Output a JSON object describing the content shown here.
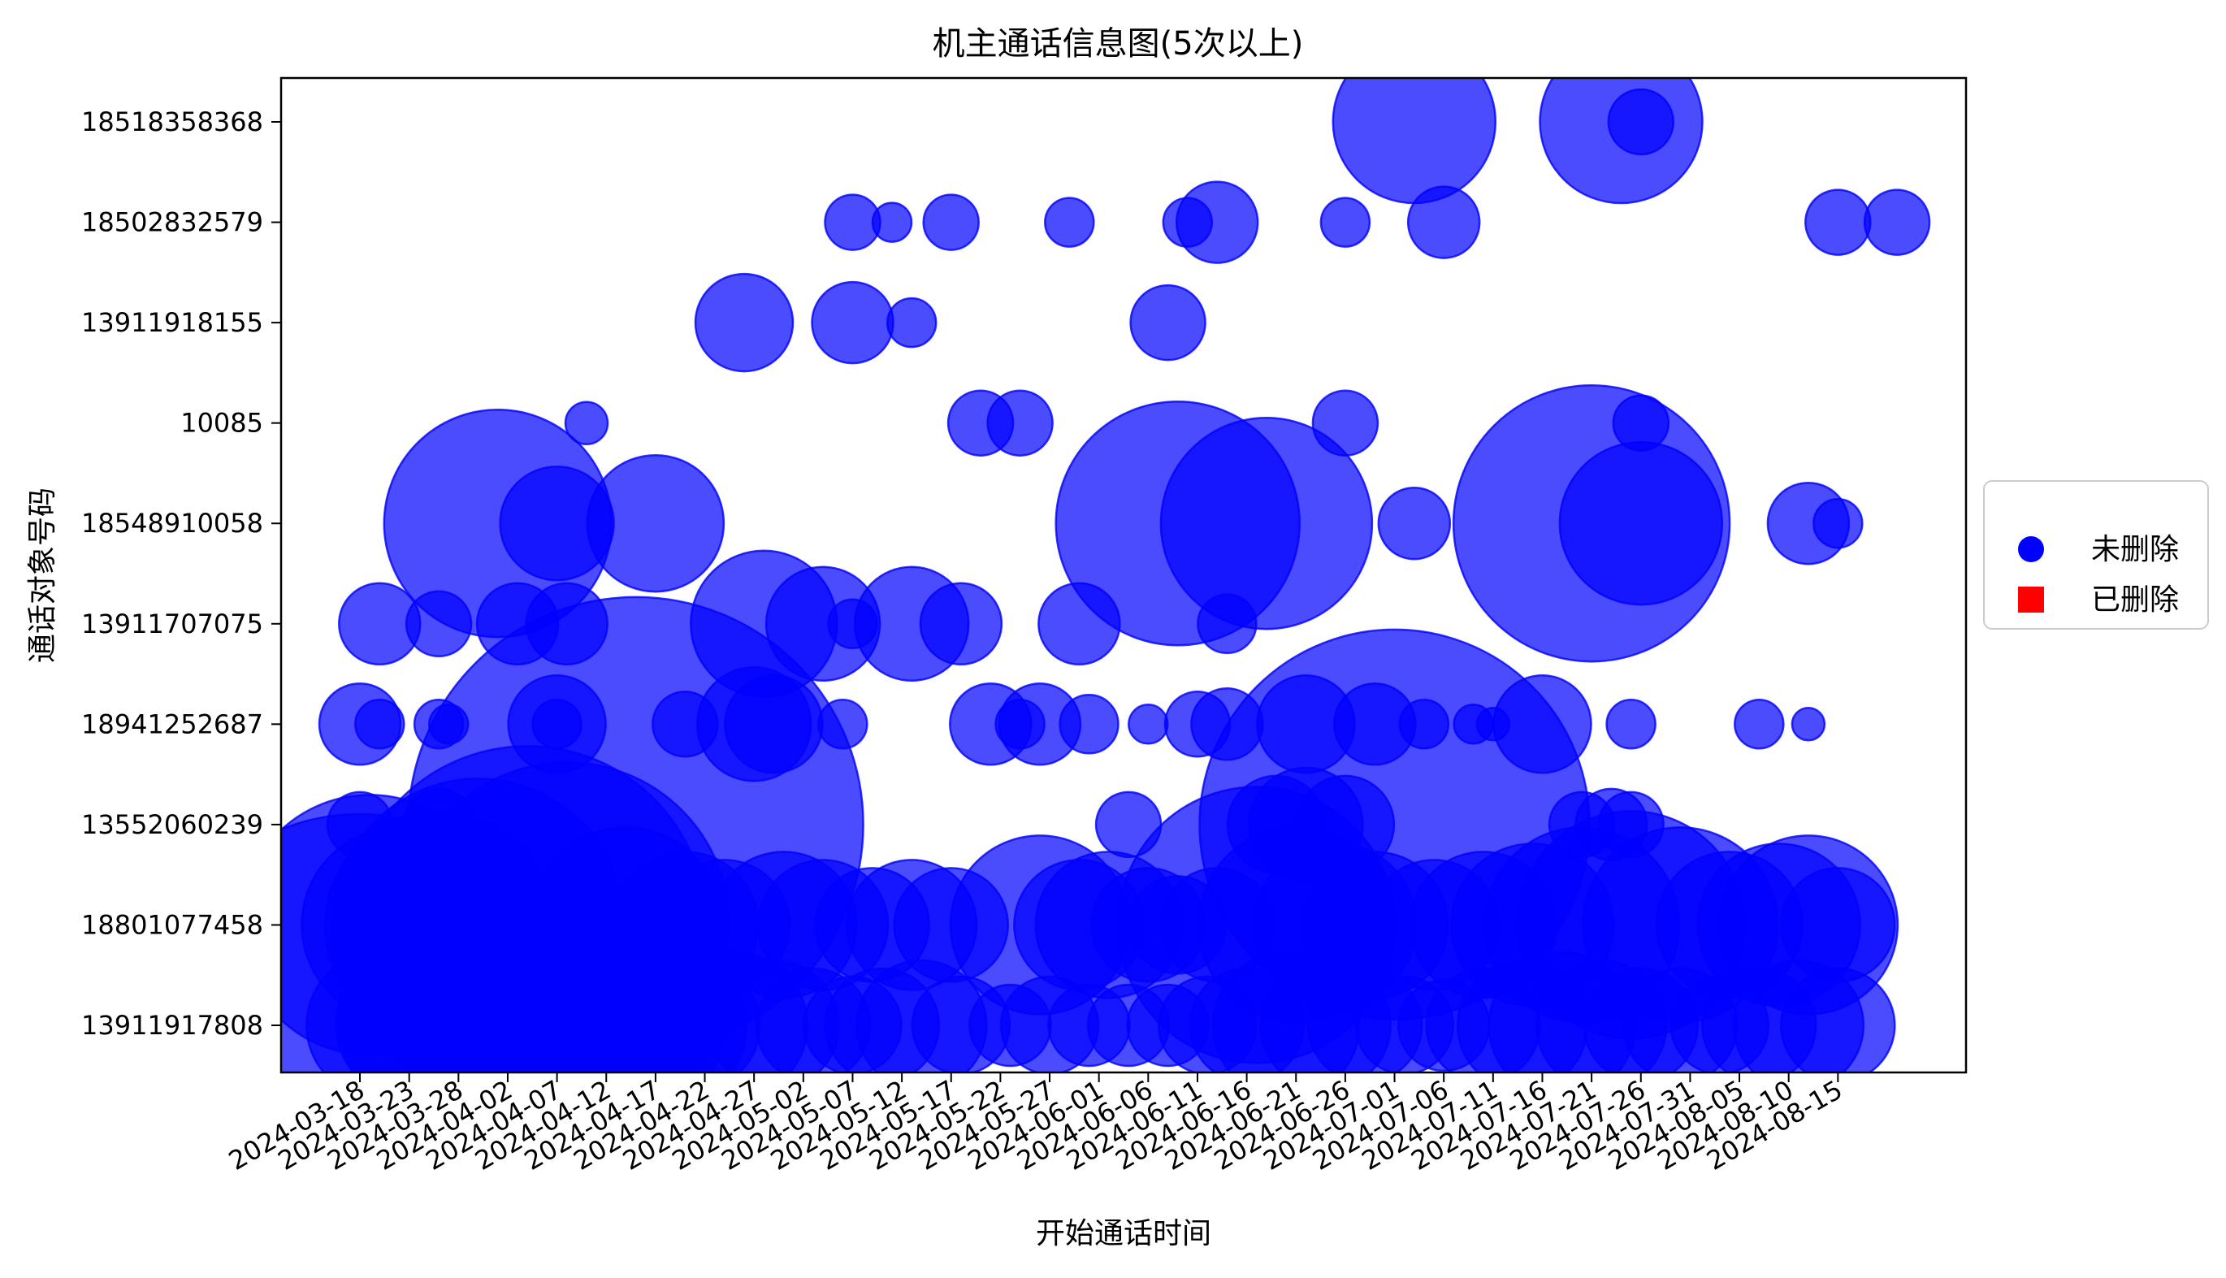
{
  "chart_data": {
    "type": "scatter",
    "title": "机主通话信息图(5次以上)",
    "xlabel": "开始通话时间",
    "ylabel": "通话对象号码",
    "x_type": "date",
    "xlim": [
      "2024-03-10",
      "2024-08-28"
    ],
    "x_ticks": [
      "2024-03-18",
      "2024-03-23",
      "2024-03-28",
      "2024-04-02",
      "2024-04-07",
      "2024-04-12",
      "2024-04-17",
      "2024-04-22",
      "2024-04-27",
      "2024-05-02",
      "2024-05-07",
      "2024-05-12",
      "2024-05-17",
      "2024-05-22",
      "2024-05-27",
      "2024-06-01",
      "2024-06-06",
      "2024-06-11",
      "2024-06-16",
      "2024-06-21",
      "2024-06-26",
      "2024-07-01",
      "2024-07-06",
      "2024-07-11",
      "2024-07-16",
      "2024-07-21",
      "2024-07-26",
      "2024-07-31",
      "2024-08-05",
      "2024-08-10",
      "2024-08-15"
    ],
    "categories": [
      "13911917808",
      "18801077458",
      "13552060239",
      "18941252687",
      "13911707075",
      "18548910058",
      "10085",
      "13911918155",
      "18502832579",
      "18518358368"
    ],
    "grid": false,
    "legend_position": "center-right-outside",
    "bubble_color": "#0000ff",
    "deleted_color": "#ff0000",
    "legend": [
      {
        "label": "未删除",
        "marker": "circle",
        "color": "#0000ff"
      },
      {
        "label": "已删除",
        "marker": "square",
        "color": "#ff0000"
      }
    ],
    "series": [
      {
        "name": "未删除",
        "points": [
          {
            "x": "2024-03-18",
            "y": "13911917808",
            "size": 130
          },
          {
            "x": "2024-03-20",
            "y": "13911917808",
            "size": 45
          },
          {
            "x": "2024-03-23",
            "y": "13911917808",
            "size": 45
          },
          {
            "x": "2024-03-26",
            "y": "13911917808",
            "size": 60
          },
          {
            "x": "2024-03-29",
            "y": "13911917808",
            "size": 50
          },
          {
            "x": "2024-04-02",
            "y": "13911917808",
            "size": 70
          },
          {
            "x": "2024-04-05",
            "y": "13911917808",
            "size": 80
          },
          {
            "x": "2024-04-08",
            "y": "13911917808",
            "size": 90
          },
          {
            "x": "2024-04-12",
            "y": "13911917808",
            "size": 60
          },
          {
            "x": "2024-04-15",
            "y": "13911917808",
            "size": 55
          },
          {
            "x": "2024-04-18",
            "y": "13911917808",
            "size": 50
          },
          {
            "x": "2024-04-21",
            "y": "13911917808",
            "size": 40
          },
          {
            "x": "2024-04-25",
            "y": "13911917808",
            "size": 45
          },
          {
            "x": "2024-04-29",
            "y": "13911917808",
            "size": 40
          },
          {
            "x": "2024-05-03",
            "y": "13911917808",
            "size": 35
          },
          {
            "x": "2024-05-07",
            "y": "13911917808",
            "size": 30
          },
          {
            "x": "2024-05-10",
            "y": "13911917808",
            "size": 35
          },
          {
            "x": "2024-05-14",
            "y": "13911917808",
            "size": 40
          },
          {
            "x": "2024-05-18",
            "y": "13911917808",
            "size": 30
          },
          {
            "x": "2024-05-23",
            "y": "13911917808",
            "size": 25
          },
          {
            "x": "2024-05-27",
            "y": "13911917808",
            "size": 30
          },
          {
            "x": "2024-05-31",
            "y": "13911917808",
            "size": 25
          },
          {
            "x": "2024-06-04",
            "y": "13911917808",
            "size": 25
          },
          {
            "x": "2024-06-08",
            "y": "13911917808",
            "size": 25
          },
          {
            "x": "2024-06-12",
            "y": "13911917808",
            "size": 30
          },
          {
            "x": "2024-06-16",
            "y": "13911917808",
            "size": 35
          },
          {
            "x": "2024-06-20",
            "y": "13911917808",
            "size": 45
          },
          {
            "x": "2024-06-24",
            "y": "13911917808",
            "size": 40
          },
          {
            "x": "2024-06-28",
            "y": "13911917808",
            "size": 35
          },
          {
            "x": "2024-07-02",
            "y": "13911917808",
            "size": 30
          },
          {
            "x": "2024-07-06",
            "y": "13911917808",
            "size": 28
          },
          {
            "x": "2024-07-10",
            "y": "13911917808",
            "size": 35
          },
          {
            "x": "2024-07-14",
            "y": "13911917808",
            "size": 40
          },
          {
            "x": "2024-07-18",
            "y": "13911917808",
            "size": 45
          },
          {
            "x": "2024-07-22",
            "y": "13911917808",
            "size": 40
          },
          {
            "x": "2024-07-26",
            "y": "13911917808",
            "size": 35
          },
          {
            "x": "2024-07-30",
            "y": "13911917808",
            "size": 35
          },
          {
            "x": "2024-08-03",
            "y": "13911917808",
            "size": 30
          },
          {
            "x": "2024-08-07",
            "y": "13911917808",
            "size": 35
          },
          {
            "x": "2024-08-11",
            "y": "13911917808",
            "size": 40
          },
          {
            "x": "2024-08-15",
            "y": "13911917808",
            "size": 35
          },
          {
            "x": "2024-03-19",
            "y": "18801077458",
            "size": 80
          },
          {
            "x": "2024-03-22",
            "y": "18801077458",
            "size": 60
          },
          {
            "x": "2024-03-26",
            "y": "18801077458",
            "size": 70
          },
          {
            "x": "2024-03-30",
            "y": "18801077458",
            "size": 90
          },
          {
            "x": "2024-04-04",
            "y": "18801077458",
            "size": 110
          },
          {
            "x": "2024-04-08",
            "y": "18801077458",
            "size": 100
          },
          {
            "x": "2024-04-14",
            "y": "18801077458",
            "size": 60
          },
          {
            "x": "2024-04-20",
            "y": "18801077458",
            "size": 45
          },
          {
            "x": "2024-04-24",
            "y": "18801077458",
            "size": 40
          },
          {
            "x": "2024-04-30",
            "y": "18801077458",
            "size": 45
          },
          {
            "x": "2024-05-04",
            "y": "18801077458",
            "size": 40
          },
          {
            "x": "2024-05-09",
            "y": "18801077458",
            "size": 35
          },
          {
            "x": "2024-05-13",
            "y": "18801077458",
            "size": 40
          },
          {
            "x": "2024-05-17",
            "y": "18801077458",
            "size": 35
          },
          {
            "x": "2024-05-26",
            "y": "18801077458",
            "size": 55
          },
          {
            "x": "2024-05-30",
            "y": "18801077458",
            "size": 40
          },
          {
            "x": "2024-06-02",
            "y": "18801077458",
            "size": 45
          },
          {
            "x": "2024-06-06",
            "y": "18801077458",
            "size": 35
          },
          {
            "x": "2024-06-09",
            "y": "18801077458",
            "size": 30
          },
          {
            "x": "2024-06-13",
            "y": "18801077458",
            "size": 35
          },
          {
            "x": "2024-06-17",
            "y": "18801077458",
            "size": 85
          },
          {
            "x": "2024-06-21",
            "y": "18801077458",
            "size": 60
          },
          {
            "x": "2024-06-25",
            "y": "18801077458",
            "size": 50
          },
          {
            "x": "2024-06-29",
            "y": "18801077458",
            "size": 45
          },
          {
            "x": "2024-07-05",
            "y": "18801077458",
            "size": 40
          },
          {
            "x": "2024-07-10",
            "y": "18801077458",
            "size": 45
          },
          {
            "x": "2024-07-15",
            "y": "18801077458",
            "size": 50
          },
          {
            "x": "2024-07-20",
            "y": "18801077458",
            "size": 60
          },
          {
            "x": "2024-07-25",
            "y": "18801077458",
            "size": 70
          },
          {
            "x": "2024-07-30",
            "y": "18801077458",
            "size": 60
          },
          {
            "x": "2024-08-04",
            "y": "18801077458",
            "size": 45
          },
          {
            "x": "2024-08-09",
            "y": "18801077458",
            "size": 50
          },
          {
            "x": "2024-08-12",
            "y": "18801077458",
            "size": 55
          },
          {
            "x": "2024-08-15",
            "y": "18801077458",
            "size": 35
          },
          {
            "x": "2024-03-18",
            "y": "13552060239",
            "size": 20
          },
          {
            "x": "2024-03-26",
            "y": "13552060239",
            "size": 22
          },
          {
            "x": "2024-04-15",
            "y": "13552060239",
            "size": 140
          },
          {
            "x": "2024-06-04",
            "y": "13552060239",
            "size": 20
          },
          {
            "x": "2024-06-19",
            "y": "13552060239",
            "size": 30
          },
          {
            "x": "2024-06-22",
            "y": "13552060239",
            "size": 35
          },
          {
            "x": "2024-06-26",
            "y": "13552060239",
            "size": 30
          },
          {
            "x": "2024-07-01",
            "y": "13552060239",
            "size": 120
          },
          {
            "x": "2024-07-20",
            "y": "13552060239",
            "size": 20
          },
          {
            "x": "2024-07-23",
            "y": "13552060239",
            "size": 22
          },
          {
            "x": "2024-07-25",
            "y": "13552060239",
            "size": 20
          },
          {
            "x": "2024-03-18",
            "y": "18941252687",
            "size": 25
          },
          {
            "x": "2024-03-20",
            "y": "18941252687",
            "size": 15
          },
          {
            "x": "2024-03-26",
            "y": "18941252687",
            "size": 15
          },
          {
            "x": "2024-03-27",
            "y": "18941252687",
            "size": 12
          },
          {
            "x": "2024-04-07",
            "y": "18941252687",
            "size": 30
          },
          {
            "x": "2024-04-07",
            "y": "18941252687",
            "size": 15
          },
          {
            "x": "2024-04-20",
            "y": "18941252687",
            "size": 20
          },
          {
            "x": "2024-04-27",
            "y": "18941252687",
            "size": 35
          },
          {
            "x": "2024-04-29",
            "y": "18941252687",
            "size": 30
          },
          {
            "x": "2024-05-06",
            "y": "18941252687",
            "size": 15
          },
          {
            "x": "2024-05-21",
            "y": "18941252687",
            "size": 25
          },
          {
            "x": "2024-05-24",
            "y": "18941252687",
            "size": 15
          },
          {
            "x": "2024-05-26",
            "y": "18941252687",
            "size": 25
          },
          {
            "x": "2024-05-31",
            "y": "18941252687",
            "size": 18
          },
          {
            "x": "2024-06-06",
            "y": "18941252687",
            "size": 12
          },
          {
            "x": "2024-06-11",
            "y": "18941252687",
            "size": 20
          },
          {
            "x": "2024-06-14",
            "y": "18941252687",
            "size": 22
          },
          {
            "x": "2024-06-22",
            "y": "18941252687",
            "size": 30
          },
          {
            "x": "2024-06-29",
            "y": "18941252687",
            "size": 25
          },
          {
            "x": "2024-07-04",
            "y": "18941252687",
            "size": 15
          },
          {
            "x": "2024-07-09",
            "y": "18941252687",
            "size": 12
          },
          {
            "x": "2024-07-11",
            "y": "18941252687",
            "size": 10
          },
          {
            "x": "2024-07-16",
            "y": "18941252687",
            "size": 30
          },
          {
            "x": "2024-07-25",
            "y": "18941252687",
            "size": 15
          },
          {
            "x": "2024-08-07",
            "y": "18941252687",
            "size": 15
          },
          {
            "x": "2024-08-12",
            "y": "18941252687",
            "size": 10
          },
          {
            "x": "2024-03-20",
            "y": "13911707075",
            "size": 25
          },
          {
            "x": "2024-03-26",
            "y": "13911707075",
            "size": 20
          },
          {
            "x": "2024-04-03",
            "y": "13911707075",
            "size": 25
          },
          {
            "x": "2024-04-08",
            "y": "13911707075",
            "size": 25
          },
          {
            "x": "2024-04-28",
            "y": "13911707075",
            "size": 45
          },
          {
            "x": "2024-05-04",
            "y": "13911707075",
            "size": 35
          },
          {
            "x": "2024-05-07",
            "y": "13911707075",
            "size": 15
          },
          {
            "x": "2024-05-13",
            "y": "13911707075",
            "size": 35
          },
          {
            "x": "2024-05-18",
            "y": "13911707075",
            "size": 25
          },
          {
            "x": "2024-05-30",
            "y": "13911707075",
            "size": 25
          },
          {
            "x": "2024-06-14",
            "y": "13911707075",
            "size": 18
          },
          {
            "x": "2024-04-01",
            "y": "18548910058",
            "size": 70
          },
          {
            "x": "2024-04-07",
            "y": "18548910058",
            "size": 35
          },
          {
            "x": "2024-04-17",
            "y": "18548910058",
            "size": 42
          },
          {
            "x": "2024-06-09",
            "y": "18548910058",
            "size": 75
          },
          {
            "x": "2024-06-18",
            "y": "18548910058",
            "size": 65
          },
          {
            "x": "2024-07-03",
            "y": "18548910058",
            "size": 22
          },
          {
            "x": "2024-07-21",
            "y": "18548910058",
            "size": 85
          },
          {
            "x": "2024-07-26",
            "y": "18548910058",
            "size": 50
          },
          {
            "x": "2024-08-12",
            "y": "18548910058",
            "size": 25
          },
          {
            "x": "2024-08-15",
            "y": "18548910058",
            "size": 15
          },
          {
            "x": "2024-04-10",
            "y": "10085",
            "size": 13
          },
          {
            "x": "2024-05-20",
            "y": "10085",
            "size": 20
          },
          {
            "x": "2024-05-24",
            "y": "10085",
            "size": 20
          },
          {
            "x": "2024-06-26",
            "y": "10085",
            "size": 20
          },
          {
            "x": "2024-07-26",
            "y": "10085",
            "size": 17
          },
          {
            "x": "2024-04-26",
            "y": "13911918155",
            "size": 30
          },
          {
            "x": "2024-05-07",
            "y": "13911918155",
            "size": 25
          },
          {
            "x": "2024-05-13",
            "y": "13911918155",
            "size": 15
          },
          {
            "x": "2024-06-08",
            "y": "13911918155",
            "size": 23
          },
          {
            "x": "2024-05-07",
            "y": "18502832579",
            "size": 17
          },
          {
            "x": "2024-05-11",
            "y": "18502832579",
            "size": 12
          },
          {
            "x": "2024-05-17",
            "y": "18502832579",
            "size": 17
          },
          {
            "x": "2024-05-29",
            "y": "18502832579",
            "size": 15
          },
          {
            "x": "2024-06-10",
            "y": "18502832579",
            "size": 15
          },
          {
            "x": "2024-06-13",
            "y": "18502832579",
            "size": 25
          },
          {
            "x": "2024-06-26",
            "y": "18502832579",
            "size": 15
          },
          {
            "x": "2024-07-06",
            "y": "18502832579",
            "size": 22
          },
          {
            "x": "2024-08-15",
            "y": "18502832579",
            "size": 20
          },
          {
            "x": "2024-08-21",
            "y": "18502832579",
            "size": 20
          },
          {
            "x": "2024-07-03",
            "y": "18518358368",
            "size": 50
          },
          {
            "x": "2024-07-24",
            "y": "18518358368",
            "size": 50
          },
          {
            "x": "2024-07-26",
            "y": "18518358368",
            "size": 20
          }
        ]
      }
    ]
  }
}
